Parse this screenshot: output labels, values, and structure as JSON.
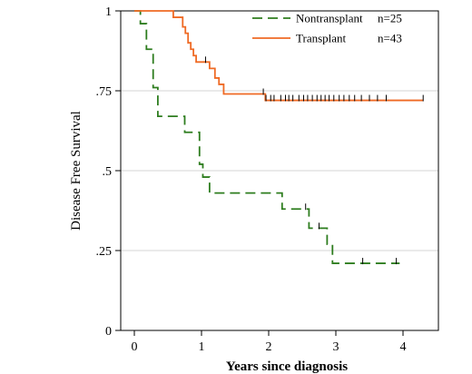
{
  "chart_data": {
    "type": "line",
    "subtype": "kaplan-meier",
    "xlabel": "Years since diagnosis",
    "ylabel": "Disease Free Survival",
    "xlim": [
      0,
      4.45
    ],
    "ylim": [
      0,
      1
    ],
    "x_ticks": [
      {
        "value": 0,
        "label": "0"
      },
      {
        "value": 1,
        "label": "1"
      },
      {
        "value": 2,
        "label": "2"
      },
      {
        "value": 3,
        "label": "3"
      },
      {
        "value": 4,
        "label": "4"
      }
    ],
    "y_ticks": [
      {
        "value": 0,
        "label": "0"
      },
      {
        "value": 0.25,
        "label": ".25"
      },
      {
        "value": 0.5,
        "label": ".5"
      },
      {
        "value": 0.75,
        "label": ".75"
      },
      {
        "value": 1,
        "label": "1"
      }
    ],
    "grid": "horizontal",
    "legend_position": "top-right",
    "series": [
      {
        "name": "Nontransplant",
        "n_label": "n=25",
        "color": "#2e7d1f",
        "dash": "dashed",
        "steps": [
          [
            0,
            1.0
          ],
          [
            0.09,
            0.96
          ],
          [
            0.18,
            0.88
          ],
          [
            0.28,
            0.76
          ],
          [
            0.35,
            0.67
          ],
          [
            0.75,
            0.62
          ],
          [
            0.97,
            0.52
          ],
          [
            1.02,
            0.48
          ],
          [
            1.12,
            0.43
          ],
          [
            2.2,
            0.38
          ],
          [
            2.6,
            0.32
          ],
          [
            2.87,
            0.27
          ],
          [
            2.95,
            0.21
          ],
          [
            3.95,
            0.21
          ]
        ],
        "censors": [
          [
            2.55,
            0.38
          ],
          [
            2.75,
            0.32
          ],
          [
            3.4,
            0.21
          ],
          [
            3.9,
            0.21
          ]
        ]
      },
      {
        "name": "Transplant",
        "n_label": "n=43",
        "color": "#ef6a24",
        "dash": "solid",
        "steps": [
          [
            0,
            1.0
          ],
          [
            0.58,
            0.98
          ],
          [
            0.72,
            0.95
          ],
          [
            0.76,
            0.93
          ],
          [
            0.8,
            0.9
          ],
          [
            0.84,
            0.88
          ],
          [
            0.88,
            0.86
          ],
          [
            0.92,
            0.84
          ],
          [
            1.12,
            0.82
          ],
          [
            1.2,
            0.79
          ],
          [
            1.26,
            0.77
          ],
          [
            1.33,
            0.74
          ],
          [
            1.95,
            0.72
          ],
          [
            4.3,
            0.72
          ]
        ],
        "censors": [
          [
            1.06,
            0.84
          ],
          [
            1.92,
            0.74
          ],
          [
            1.96,
            0.72
          ],
          [
            2.03,
            0.72
          ],
          [
            2.08,
            0.72
          ],
          [
            2.18,
            0.72
          ],
          [
            2.25,
            0.72
          ],
          [
            2.3,
            0.72
          ],
          [
            2.36,
            0.72
          ],
          [
            2.45,
            0.72
          ],
          [
            2.52,
            0.72
          ],
          [
            2.58,
            0.72
          ],
          [
            2.65,
            0.72
          ],
          [
            2.72,
            0.72
          ],
          [
            2.78,
            0.72
          ],
          [
            2.84,
            0.72
          ],
          [
            2.9,
            0.72
          ],
          [
            2.97,
            0.72
          ],
          [
            3.05,
            0.72
          ],
          [
            3.12,
            0.72
          ],
          [
            3.2,
            0.72
          ],
          [
            3.28,
            0.72
          ],
          [
            3.38,
            0.72
          ],
          [
            3.5,
            0.72
          ],
          [
            3.62,
            0.72
          ],
          [
            3.75,
            0.72
          ],
          [
            4.3,
            0.72
          ]
        ]
      }
    ]
  }
}
